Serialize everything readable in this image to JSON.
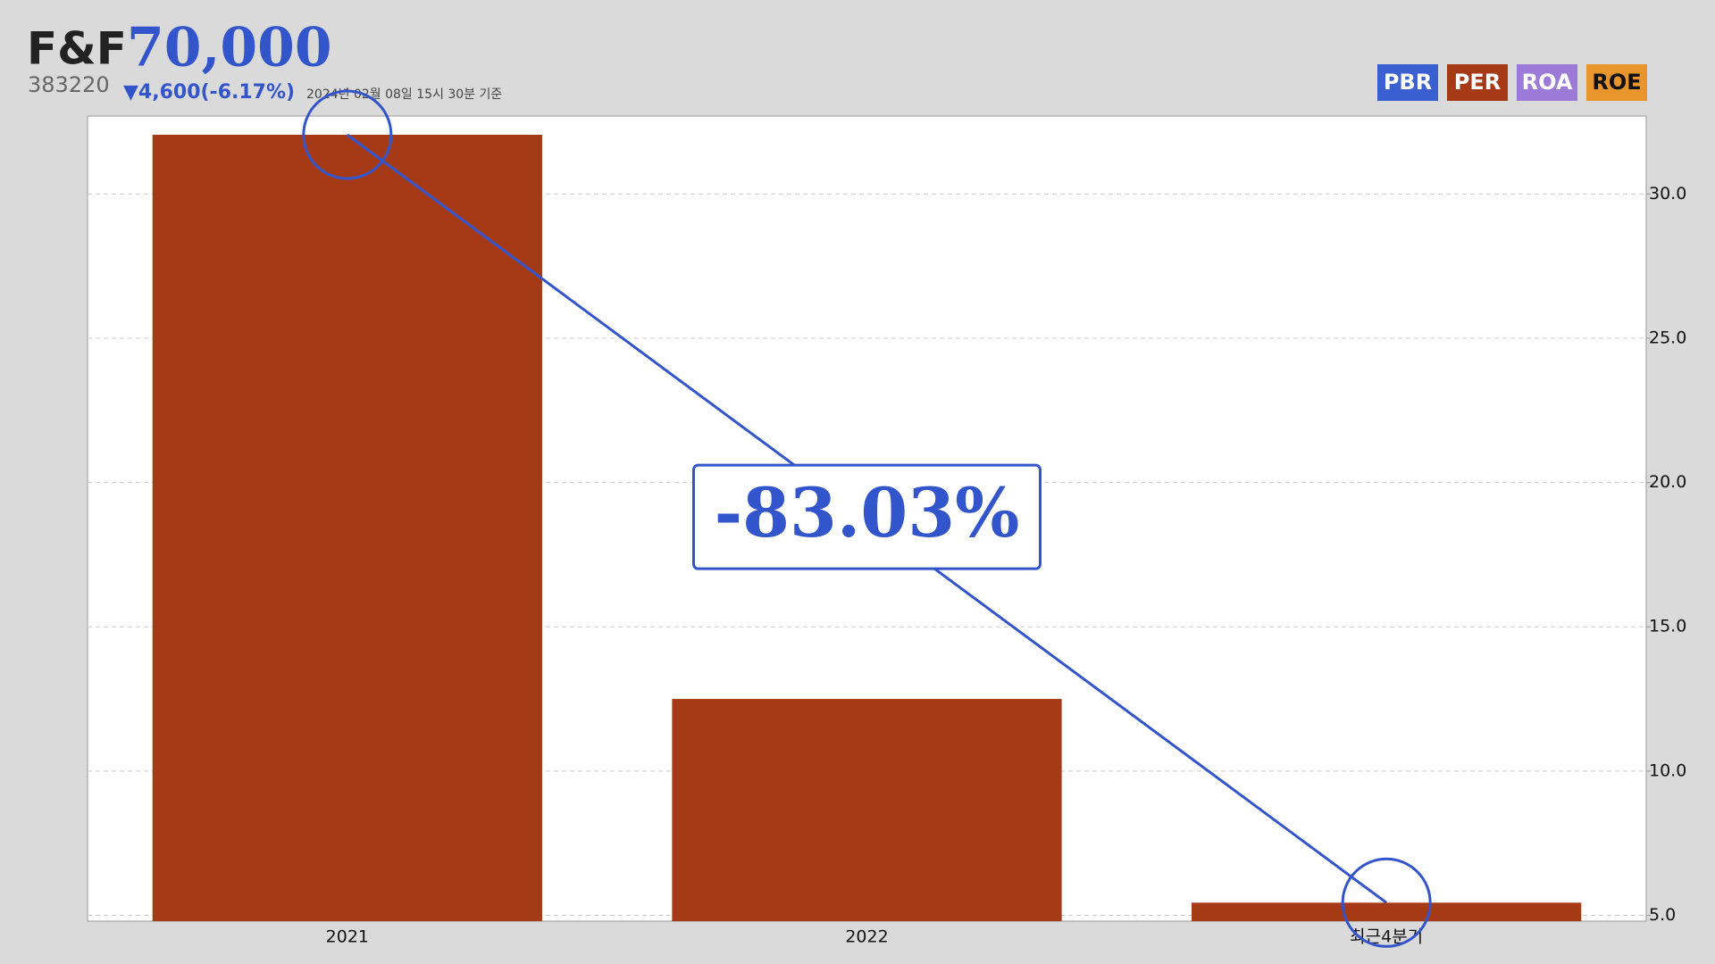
{
  "stock": {
    "name": "F&F",
    "price": "70,000",
    "code": "383220",
    "change": "▼4,600(-6.17%)",
    "date": "2024년 02월 08일 15시 30분 기준"
  },
  "tabs": [
    {
      "label": "PBR",
      "color": "#3a5fd0"
    },
    {
      "label": "PER",
      "color": "#a63a16"
    },
    {
      "label": "ROA",
      "color": "#9b7ad8"
    },
    {
      "label": "ROE",
      "color": "#e8962c"
    }
  ],
  "chart_data": {
    "type": "bar",
    "categories": [
      "2021",
      "2022",
      "최근4분기"
    ],
    "series": [
      {
        "name": "PER",
        "color": "#a63a16",
        "values": [
          32.05,
          12.5,
          5.44
        ]
      }
    ],
    "ylim": [
      4.8,
      32.7
    ],
    "yticks": [
      {
        "value": 5,
        "label": "5.0"
      },
      {
        "value": 10,
        "label": "10.0"
      },
      {
        "value": 15,
        "label": "15.0"
      },
      {
        "value": 20,
        "label": "20.0"
      },
      {
        "value": 25,
        "label": "25.0"
      },
      {
        "value": 30,
        "label": "30.0"
      }
    ],
    "grid": true,
    "annotation": "-83.03%"
  }
}
